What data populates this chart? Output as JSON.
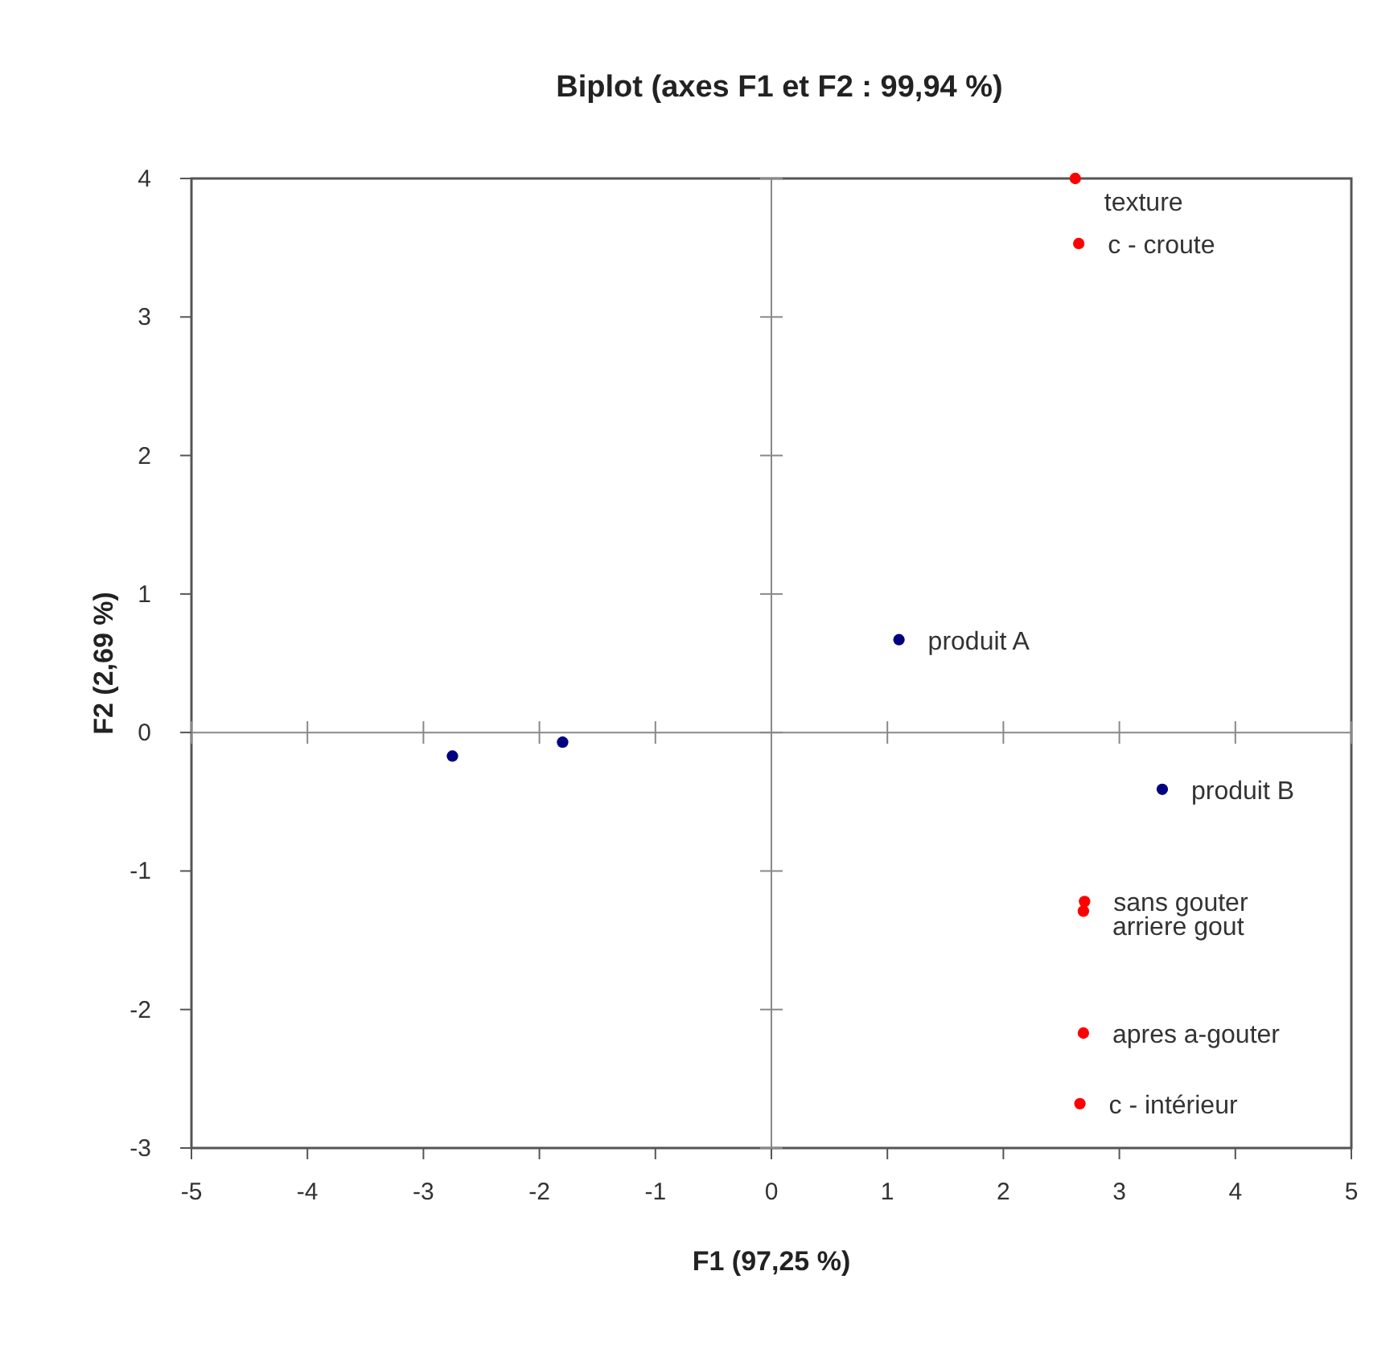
{
  "chart_data": {
    "type": "scatter",
    "title": "Biplot (axes F1 et F2 : 99,94 %)",
    "xlabel": "F1 (97,25 %)",
    "ylabel": "F2 (2,69 %)",
    "xlim": [
      -5,
      5
    ],
    "xticks": [
      -5,
      -4,
      -3,
      -2,
      -1,
      0,
      1,
      2,
      3,
      4,
      5
    ],
    "ylim": [
      -3,
      4
    ],
    "yticks": [
      -3,
      -2,
      -1,
      0,
      1,
      2,
      3,
      4
    ],
    "marker": "circle",
    "series": [
      {
        "color": "#000080",
        "x": [
          -2.75,
          -1.8,
          1.1,
          3.37
        ],
        "values": [
          -0.17,
          -0.07,
          0.67,
          -0.41
        ]
      },
      {
        "color": "#ff0000",
        "x": [
          2.62,
          2.65,
          2.7,
          2.69,
          2.69,
          2.66
        ],
        "values": [
          4.0,
          3.53,
          -1.22,
          -1.29,
          -2.17,
          -2.68
        ]
      }
    ],
    "annotations": [
      {
        "text": "produit A",
        "x": 1.1,
        "y": 0.67
      },
      {
        "text": "produit B",
        "x": 3.37,
        "y": -0.41
      },
      {
        "text": "texture",
        "x": 2.62,
        "y": 4.0
      },
      {
        "text": "c - croute",
        "x": 2.65,
        "y": 3.53
      },
      {
        "text": "sans gouter",
        "x": 2.7,
        "y": -1.22
      },
      {
        "text": "arriere gout",
        "x": 2.69,
        "y": -1.29
      },
      {
        "text": "apres a-gouter",
        "x": 2.69,
        "y": -2.17
      },
      {
        "text": "c - intérieur",
        "x": 2.66,
        "y": -2.68
      }
    ]
  }
}
